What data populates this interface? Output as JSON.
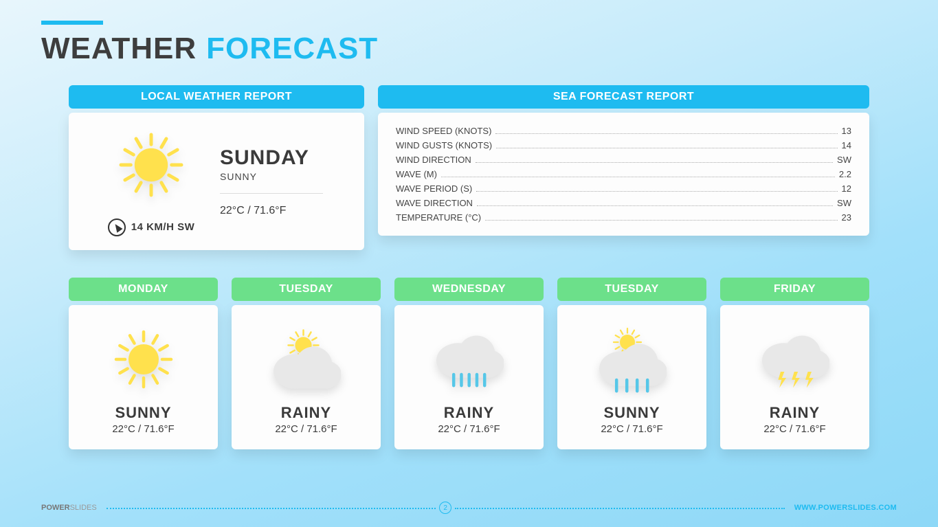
{
  "colors": {
    "accent_blue": "#1ebbf0",
    "card_bg": "#fdfdfd",
    "green": "#6ce08a",
    "text_dark": "#3d3d3d",
    "text_body": "#444444",
    "shadow": "rgba(0,0,0,0.10)",
    "dot_gray": "#aaaaaa",
    "sun_yellow": "#ffe14d",
    "cloud_gray": "#e8e8e8",
    "cloud_shadow": "#d6d6d6",
    "rain_blue": "#56c7e8"
  },
  "typography": {
    "title_pt": 44,
    "panel_hdr_pt": 16,
    "day_cond_pt": 22,
    "sea_row_pt": 13
  },
  "title": {
    "part1": "WEATHER",
    "part2": "FORECAST"
  },
  "local": {
    "header": "LOCAL WEATHER REPORT",
    "day": "SUNDAY",
    "condition": "SUNNY",
    "icon": "sun",
    "wind_text": "14  KM/H SW",
    "temp": "22°C / 71.6°F"
  },
  "sea": {
    "header": "SEA FORECAST REPORT",
    "rows": [
      {
        "label": "WIND SPEED (KNOTS)",
        "value": "13"
      },
      {
        "label": "WIND GUSTS (KNOTS)",
        "value": "14"
      },
      {
        "label": "WIND DIRECTION",
        "value": "SW"
      },
      {
        "label": "WAVE (M)",
        "value": "2.2"
      },
      {
        "label": "WAVE PERIOD (S)",
        "value": "12"
      },
      {
        "label": "WAVE DIRECTION",
        "value": "SW"
      },
      {
        "label": "TEMPERATURE (°C)",
        "value": "23"
      }
    ]
  },
  "days": [
    {
      "name": "MONDAY",
      "condition": "SUNNY",
      "temp": "22°C / 71.6°F",
      "icon": "sun"
    },
    {
      "name": "TUESDAY",
      "condition": "RAINY",
      "temp": "22°C / 71.6°F",
      "icon": "partly"
    },
    {
      "name": "WEDNESDAY",
      "condition": "RAINY",
      "temp": "22°C / 71.6°F",
      "icon": "rain"
    },
    {
      "name": "TUESDAY",
      "condition": "SUNNY",
      "temp": "22°C / 71.6°F",
      "icon": "sun_cloud_rain"
    },
    {
      "name": "FRIDAY",
      "condition": "RAINY",
      "temp": "22°C / 71.6°F",
      "icon": "storm"
    }
  ],
  "footer": {
    "brand1": "POWER",
    "brand2": "SLIDES",
    "page": "2",
    "url": "WWW.POWERSLIDES.COM"
  }
}
